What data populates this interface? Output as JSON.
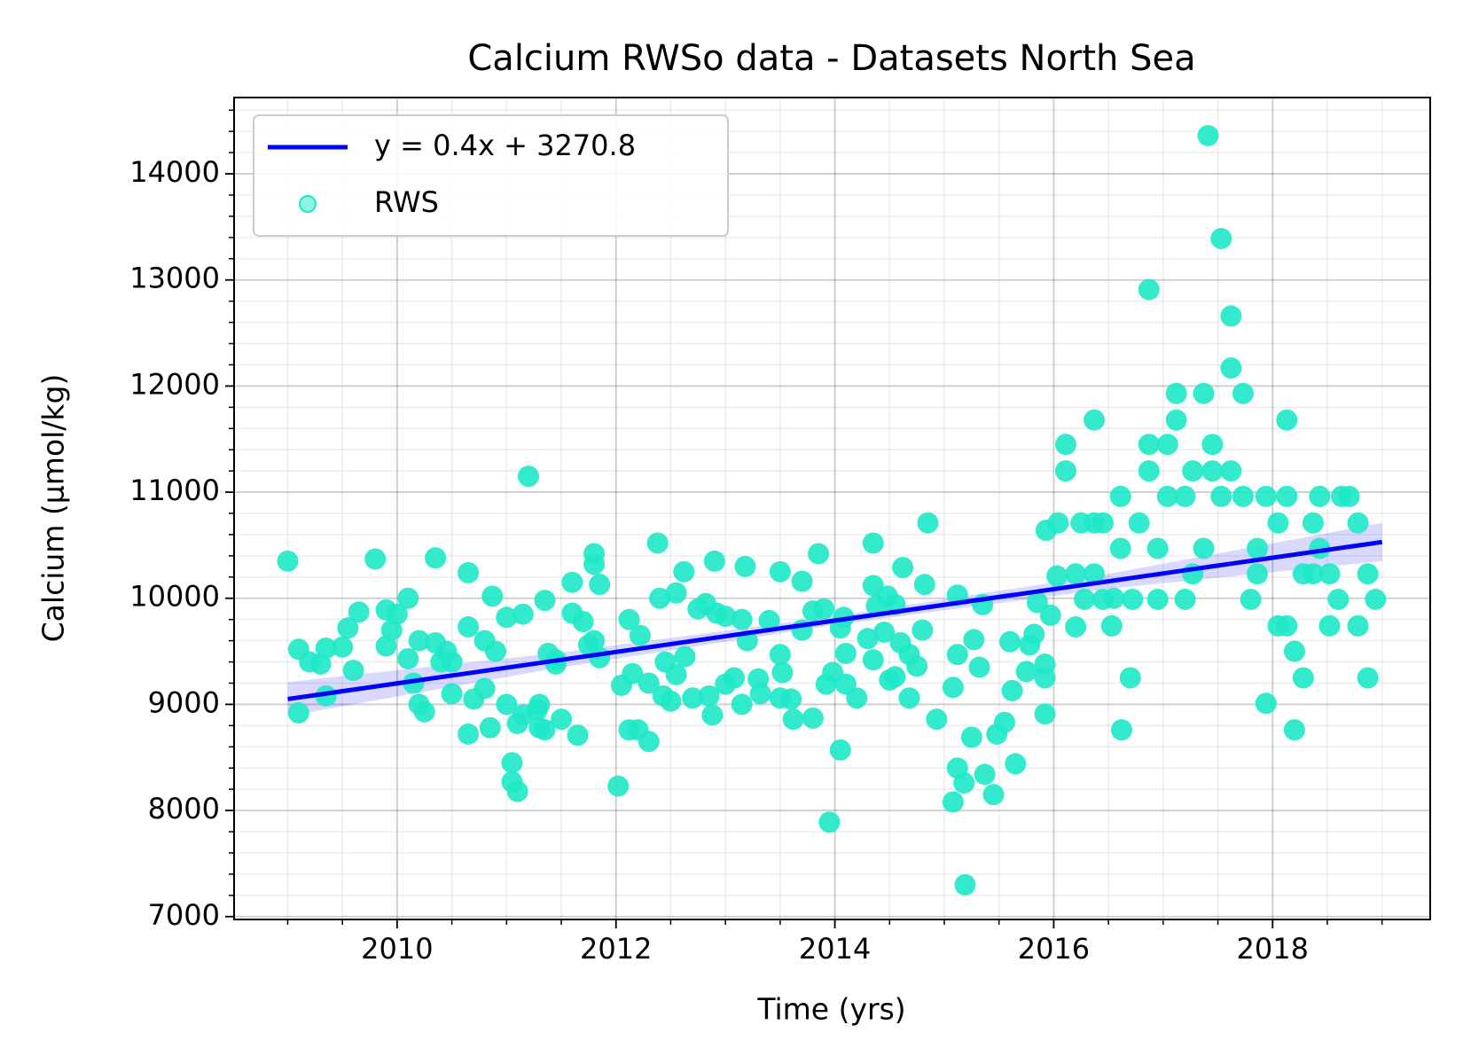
{
  "chart_data": {
    "type": "scatter",
    "title": "Calcium RWSo data - Datasets North Sea",
    "xlabel": "Time (yrs)",
    "ylabel": "Calcium (µmol/kg)",
    "xlim": [
      2008.51,
      2019.44
    ],
    "ylim": [
      6973,
      14719
    ],
    "xticks": [
      2010,
      2012,
      2014,
      2016,
      2018
    ],
    "yticks": [
      7000,
      8000,
      9000,
      10000,
      11000,
      12000,
      13000,
      14000
    ],
    "xminor": [
      2008.5,
      2009,
      2009.5,
      2010.5,
      2011,
      2011.5,
      2012.5,
      2013,
      2013.5,
      2014.5,
      2015,
      2015.5,
      2016.5,
      2017,
      2017.5,
      2018.5,
      2019
    ],
    "yminor": [
      7200,
      7400,
      7600,
      7800,
      8200,
      8400,
      8600,
      8800,
      9200,
      9400,
      9600,
      9800,
      10200,
      10400,
      10600,
      10800,
      11200,
      11400,
      11600,
      11800,
      12200,
      12400,
      12600,
      12800,
      13200,
      13400,
      13600,
      13800,
      14200,
      14400,
      14600
    ],
    "grid": true,
    "legend": "upper-left",
    "band": {
      "color": "#0000ff",
      "x": [
        2009,
        2011.5,
        2014,
        2016.5,
        2019
      ],
      "upper": [
        9210,
        9490,
        9830,
        10230,
        10710
      ],
      "lower": [
        8890,
        9350,
        9750,
        10090,
        10350
      ]
    },
    "series": [
      {
        "name": "y = 0.4x + 3270.8",
        "kind": "line",
        "color": "#0000ff",
        "x": [
          2009,
          2019
        ],
        "values": [
          9050,
          10530
        ]
      },
      {
        "name": "RWS",
        "kind": "scatter",
        "color": "#1de9c6",
        "x": [
          2009.0,
          2009.1,
          2009.1,
          2009.2,
          2009.3,
          2009.35,
          2009.35,
          2009.5,
          2009.55,
          2009.6,
          2009.65,
          2009.8,
          2009.9,
          2009.9,
          2009.95,
          2010.0,
          2010.1,
          2010.1,
          2010.15,
          2010.2,
          2010.2,
          2010.25,
          2010.35,
          2010.35,
          2010.4,
          2010.45,
          2010.5,
          2010.5,
          2010.65,
          2010.65,
          2010.65,
          2010.7,
          2010.8,
          2010.8,
          2010.85,
          2010.87,
          2010.9,
          2011.0,
          2011.0,
          2011.05,
          2011.05,
          2011.1,
          2011.1,
          2011.15,
          2011.15,
          2011.2,
          2011.28,
          2011.3,
          2011.3,
          2011.35,
          2011.35,
          2011.38,
          2011.45,
          2011.45,
          2011.5,
          2011.6,
          2011.6,
          2011.65,
          2011.7,
          2011.75,
          2011.8,
          2011.8,
          2011.8,
          2011.85,
          2011.85,
          2012.02,
          2012.05,
          2012.12,
          2012.12,
          2012.15,
          2012.2,
          2012.22,
          2012.3,
          2012.3,
          2012.38,
          2012.4,
          2012.43,
          2012.45,
          2012.5,
          2012.55,
          2012.55,
          2012.62,
          2012.63,
          2012.7,
          2012.75,
          2012.82,
          2012.85,
          2012.88,
          2012.9,
          2012.92,
          2013.0,
          2013.0,
          2013.08,
          2013.15,
          2013.15,
          2013.18,
          2013.2,
          2013.3,
          2013.32,
          2013.4,
          2013.5,
          2013.5,
          2013.5,
          2013.52,
          2013.6,
          2013.62,
          2013.7,
          2013.7,
          2013.8,
          2013.8,
          2013.9,
          2013.85,
          2013.95,
          2013.92,
          2013.98,
          2014.05,
          2014.05,
          2014.08,
          2014.1,
          2014.1,
          2014.2,
          2014.3,
          2014.35,
          2014.35,
          2014.35,
          2014.38,
          2014.45,
          2014.48,
          2014.5,
          2014.55,
          2014.55,
          2014.6,
          2014.62,
          2014.68,
          2014.68,
          2014.75,
          2014.8,
          2014.82,
          2014.85,
          2014.93,
          2015.08,
          2015.08,
          2015.12,
          2015.12,
          2015.12,
          2015.19,
          2015.18,
          2015.25,
          2015.27,
          2015.32,
          2015.35,
          2015.37,
          2015.45,
          2015.48,
          2015.55,
          2015.6,
          2015.62,
          2015.65,
          2015.75,
          2015.78,
          2015.82,
          2015.85,
          2015.92,
          2015.92,
          2015.92,
          2015.93,
          2015.97,
          2016.04,
          2016.03,
          2016.11,
          2016.11,
          2016.2,
          2016.2,
          2016.25,
          2016.28,
          2016.37,
          2016.37,
          2016.37,
          2016.45,
          2016.45,
          2016.53,
          2016.55,
          2016.61,
          2016.61,
          2016.62,
          2016.7,
          2016.72,
          2016.78,
          2016.87,
          2016.87,
          2016.87,
          2016.95,
          2016.95,
          2017.04,
          2017.04,
          2017.12,
          2017.12,
          2017.2,
          2017.2,
          2017.27,
          2017.27,
          2017.37,
          2017.37,
          2017.41,
          2017.45,
          2017.45,
          2017.53,
          2017.53,
          2017.62,
          2017.62,
          2017.62,
          2017.73,
          2017.73,
          2017.8,
          2017.86,
          2017.86,
          2017.94,
          2017.94,
          2018.05,
          2018.05,
          2018.13,
          2018.13,
          2018.13,
          2018.2,
          2018.2,
          2018.28,
          2018.28,
          2018.37,
          2018.37,
          2018.43,
          2018.43,
          2018.52,
          2018.52,
          2018.6,
          2018.63,
          2018.7,
          2018.78,
          2018.78,
          2018.87,
          2018.87,
          2018.94
        ],
        "values": [
          10350,
          9520,
          8920,
          9400,
          9380,
          9080,
          9530,
          9540,
          9720,
          9320,
          9870,
          10370,
          9890,
          9550,
          9700,
          9850,
          10000,
          9430,
          9200,
          9600,
          9000,
          8930,
          9580,
          10380,
          9400,
          9500,
          9400,
          9100,
          9730,
          8720,
          10240,
          9050,
          9600,
          9150,
          8780,
          10020,
          9500,
          9820,
          9000,
          8450,
          8270,
          8180,
          8820,
          9850,
          8900,
          11150,
          8950,
          8780,
          9000,
          9980,
          8760,
          9480,
          9380,
          9420,
          8860,
          10150,
          9860,
          8710,
          9780,
          9560,
          10420,
          10320,
          9600,
          10130,
          9440,
          8230,
          9180,
          9800,
          8760,
          9290,
          8760,
          9650,
          8650,
          9200,
          10520,
          10000,
          9080,
          9400,
          9030,
          10050,
          9280,
          10250,
          9450,
          9060,
          9900,
          9950,
          9080,
          8900,
          10350,
          9860,
          9830,
          9190,
          9250,
          9800,
          9000,
          10300,
          9600,
          9240,
          9100,
          9790,
          10250,
          9470,
          9060,
          9300,
          9050,
          8860,
          10160,
          9700,
          9880,
          8870,
          9900,
          10420,
          7890,
          9190,
          9300,
          8570,
          9720,
          9820,
          9480,
          9190,
          9060,
          9620,
          10520,
          10120,
          9420,
          9930,
          9680,
          10020,
          9230,
          9940,
          9260,
          9580,
          10290,
          9470,
          9060,
          9360,
          9700,
          10130,
          10710,
          8860,
          8080,
          9160,
          10030,
          9470,
          8400,
          7300,
          8260,
          8690,
          9610,
          9350,
          9940,
          8340,
          8150,
          8720,
          8830,
          9590,
          9130,
          8440,
          9310,
          9560,
          9660,
          9960,
          9380,
          9250,
          8910,
          10640,
          9840,
          10710,
          10210,
          11450,
          11200,
          10230,
          9730,
          10710,
          9990,
          11680,
          10710,
          10230,
          10710,
          9990,
          9740,
          10000,
          10960,
          10470,
          8760,
          9250,
          9990,
          10710,
          12910,
          11450,
          11200,
          10470,
          9990,
          10960,
          11450,
          11930,
          11680,
          9990,
          10960,
          11200,
          10230,
          11930,
          10470,
          14360,
          11450,
          11200,
          13390,
          10960,
          12660,
          12170,
          11200,
          11930,
          10960,
          9990,
          10470,
          10230,
          10960,
          9010,
          10710,
          9740,
          11680,
          10960,
          9740,
          9500,
          8760,
          9250,
          10230,
          10710,
          10230,
          10470,
          10960,
          9740,
          10230,
          9990,
          10960,
          10960,
          10710,
          9740,
          9250,
          10230,
          9990
        ]
      }
    ]
  }
}
